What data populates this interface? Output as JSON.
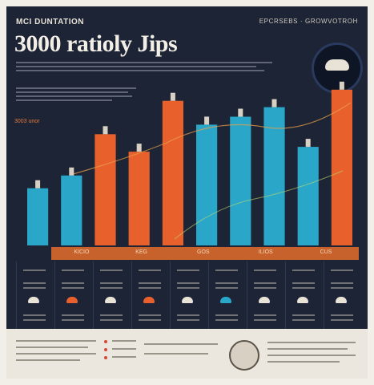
{
  "header": {
    "kicker": "MCI DUNTATION",
    "headline": "3000 ",
    "headline_word": "ratioly Jips",
    "corner_tag": "EPCRSEBS · GROWVOTROH"
  },
  "chart_data": {
    "type": "bar",
    "title": "3000 ratioly Jips",
    "scale_note": "3003 unor",
    "categories": [
      "",
      "",
      "",
      "",
      "",
      "",
      "",
      "",
      "",
      ""
    ],
    "series_colors": [
      "#2aa6c9",
      "#e8612c"
    ],
    "values": [
      72,
      88,
      140,
      118,
      182,
      152,
      162,
      174,
      124,
      196
    ],
    "colors": [
      "#2aa6c9",
      "#2aa6c9",
      "#e8612c",
      "#e8612c",
      "#e8612c",
      "#2aa6c9",
      "#2aa6c9",
      "#2aa6c9",
      "#2aa6c9",
      "#e8612c"
    ],
    "ylim": [
      0,
      220
    ],
    "grid": false,
    "stripe_labels": [
      "KICIO",
      "KEG",
      "GOS",
      "ILIOS",
      "CUS"
    ]
  }
}
